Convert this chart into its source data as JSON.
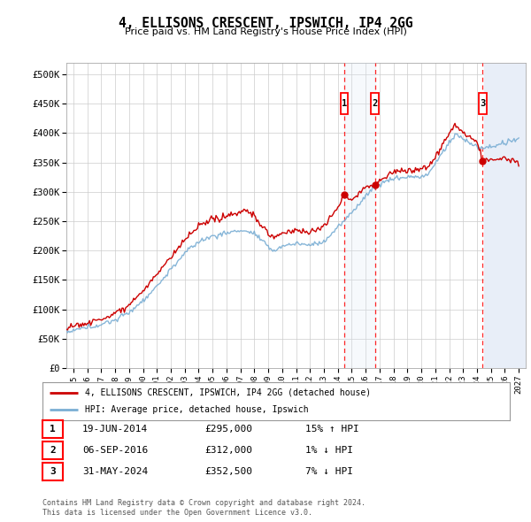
{
  "title": "4, ELLISONS CRESCENT, IPSWICH, IP4 2GG",
  "subtitle": "Price paid vs. HM Land Registry's House Price Index (HPI)",
  "legend_line1": "4, ELLISONS CRESCENT, IPSWICH, IP4 2GG (detached house)",
  "legend_line2": "HPI: Average price, detached house, Ipswich",
  "footer1": "Contains HM Land Registry data © Crown copyright and database right 2024.",
  "footer2": "This data is licensed under the Open Government Licence v3.0.",
  "transactions": [
    {
      "num": 1,
      "date": "19-JUN-2014",
      "price": "£295,000",
      "hpi": "15% ↑ HPI",
      "x_year": 2014.47,
      "price_val": 295000
    },
    {
      "num": 2,
      "date": "06-SEP-2016",
      "price": "£312,000",
      "hpi": "1% ↓ HPI",
      "x_year": 2016.68,
      "price_val": 312000
    },
    {
      "num": 3,
      "date": "31-MAY-2024",
      "price": "£352,500",
      "hpi": "7% ↓ HPI",
      "x_year": 2024.41,
      "price_val": 352500
    }
  ],
  "ylim": [
    0,
    520000
  ],
  "xlim": [
    1994.5,
    2027.5
  ],
  "yticks": [
    0,
    50000,
    100000,
    150000,
    200000,
    250000,
    300000,
    350000,
    400000,
    450000,
    500000
  ],
  "ytick_labels": [
    "£0",
    "£50K",
    "£100K",
    "£150K",
    "£200K",
    "£250K",
    "£300K",
    "£350K",
    "£400K",
    "£450K",
    "£500K"
  ],
  "xticks": [
    1995,
    1996,
    1997,
    1998,
    1999,
    2000,
    2001,
    2002,
    2003,
    2004,
    2005,
    2006,
    2007,
    2008,
    2009,
    2010,
    2011,
    2012,
    2013,
    2014,
    2015,
    2016,
    2017,
    2018,
    2019,
    2020,
    2021,
    2022,
    2023,
    2024,
    2025,
    2026,
    2027
  ],
  "hpi_color": "#7aaed4",
  "price_color": "#cc0000",
  "background_color": "#ffffff",
  "grid_color": "#cccccc",
  "future_start": 2024.5,
  "span_color": "#dce8f5",
  "hatch_color": "#c8d4e8"
}
